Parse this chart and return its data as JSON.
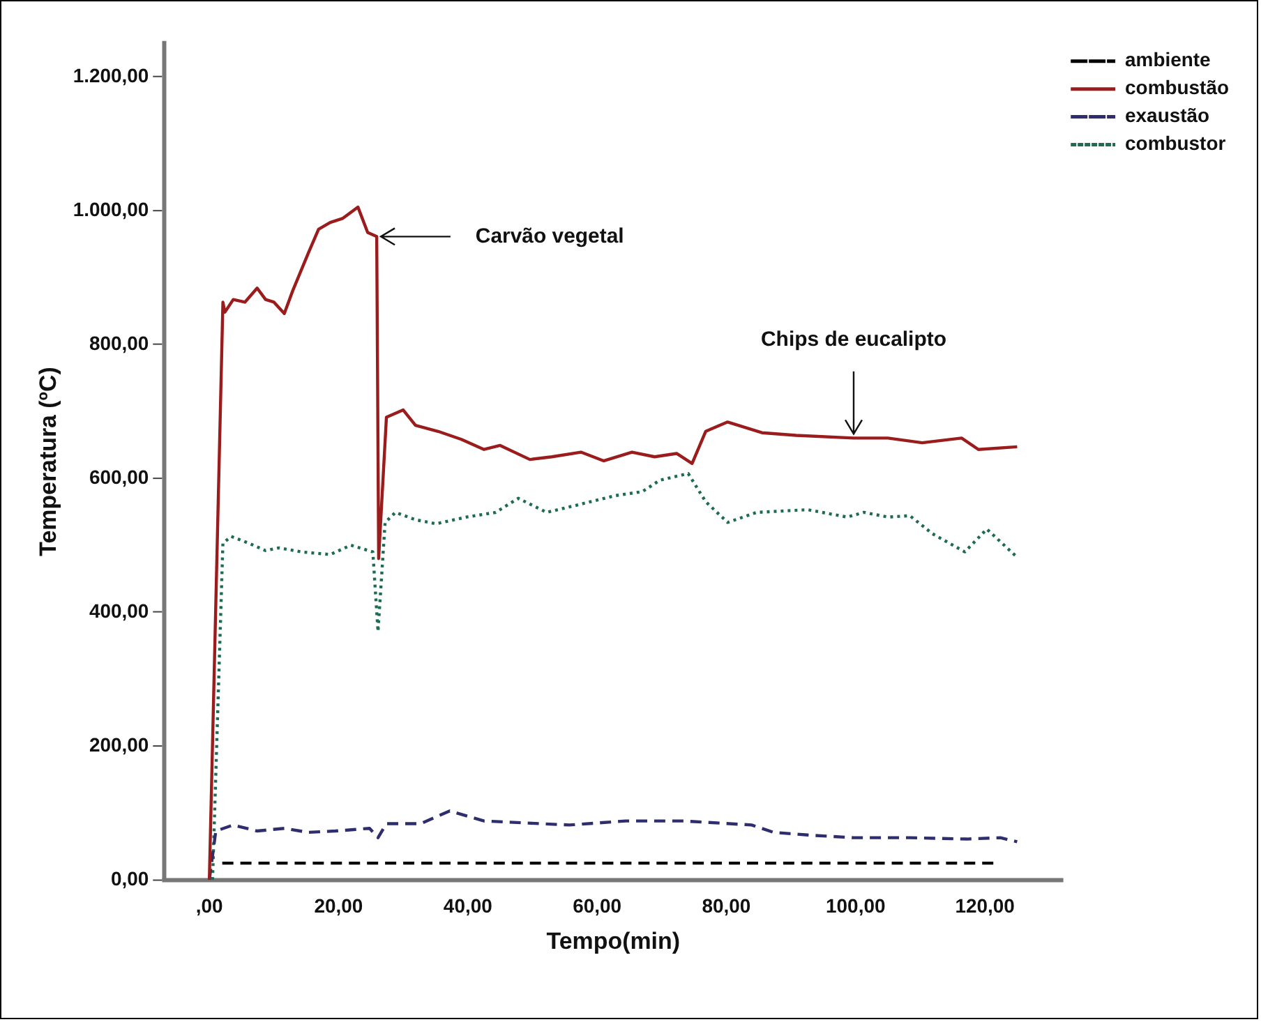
{
  "chart_data": {
    "type": "line",
    "xlabel": "Tempo(min)",
    "ylabel": "Temperatura (ºC)",
    "xlim": [
      -7,
      132
    ],
    "xticks": [
      {
        "value": 0,
        "label": ",00"
      },
      {
        "value": 20,
        "label": "20,00"
      },
      {
        "value": 40,
        "label": "40,00"
      },
      {
        "value": 60,
        "label": "60,00"
      },
      {
        "value": 80,
        "label": "80,00"
      },
      {
        "value": 100,
        "label": "100,00"
      },
      {
        "value": 120,
        "label": "120,00"
      }
    ],
    "ylim": [
      0,
      1250
    ],
    "yticks": [
      {
        "value": 0,
        "label": "0,00"
      },
      {
        "value": 200,
        "label": "200,00"
      },
      {
        "value": 400,
        "label": "400,00"
      },
      {
        "value": 600,
        "label": "600,00"
      },
      {
        "value": 800,
        "label": "800,00"
      },
      {
        "value": 1000,
        "label": "1.000,00"
      },
      {
        "value": 1200,
        "label": "1.200,00"
      }
    ],
    "grid": false,
    "legend": "top right",
    "marker": "none",
    "annotations": [
      {
        "text": "Carvão vegetal",
        "x": 25.9,
        "y": 961
      },
      {
        "text": "Chips de eucalipto",
        "x": 99.7,
        "y": 660
      }
    ],
    "series": [
      {
        "name": "ambiente",
        "color": "#000000",
        "line_style": "dashed",
        "x": [
          2,
          122
        ],
        "values": [
          25,
          25
        ]
      },
      {
        "name": "combustão",
        "color": "#9b1c1c",
        "line_style": "solid",
        "x": [
          0,
          2.1,
          2.4,
          3.7,
          5.5,
          7.4,
          8.7,
          10,
          11.6,
          12.9,
          15.3,
          16.9,
          18.7,
          20.6,
          23,
          24.5,
          25.9,
          26.2,
          27.4,
          30,
          31.9,
          35.4,
          39,
          42.5,
          45,
          49.6,
          53,
          57.5,
          61,
          65.4,
          68.9,
          72.3,
          74.7,
          76.8,
          80.2,
          85.5,
          90.8,
          99.7,
          105,
          110.3,
          116.4,
          119,
          125
        ],
        "values": [
          0,
          863,
          848,
          867,
          863,
          884,
          867,
          863,
          846,
          880,
          936,
          972,
          982,
          988,
          1005,
          967,
          961,
          480,
          691,
          702,
          679,
          670,
          658,
          643,
          649,
          628,
          632,
          639,
          626,
          639,
          632,
          637,
          622,
          670,
          684,
          668,
          664,
          660,
          660,
          653,
          660,
          643,
          647
        ]
      },
      {
        "name": "exaustão",
        "color": "#2e2e6e",
        "line_style": "dashed",
        "x": [
          0,
          1,
          3.7,
          7.4,
          11.6,
          15.3,
          19.5,
          24.8,
          26.1,
          27.4,
          32.7,
          37.2,
          42.5,
          51.2,
          55.7,
          64.4,
          73.4,
          83.9,
          87.3,
          92.6,
          99.7,
          108.4,
          117.2,
          122.4,
          125
        ],
        "values": [
          0,
          73,
          82,
          73,
          77,
          71,
          73,
          77,
          63,
          84,
          84,
          103,
          88,
          84,
          82,
          88,
          88,
          82,
          71,
          67,
          63,
          63,
          61,
          63,
          57
        ]
      },
      {
        "name": "combustor",
        "color": "#1e6b55",
        "line_style": "dotted",
        "x": [
          0.5,
          2.1,
          3.4,
          6.1,
          8.7,
          10.8,
          14.2,
          18.7,
          21.9,
          25.3,
          26.1,
          27.2,
          28.8,
          31.9,
          35.1,
          39.8,
          44.3,
          47.8,
          52.2,
          56.5,
          62.8,
          67,
          69.7,
          74.1,
          76.8,
          80.2,
          84.7,
          92.6,
          98.7,
          101.3,
          105,
          108.4,
          111.9,
          116.9,
          120.3,
          125
        ],
        "values": [
          0,
          503,
          513,
          503,
          492,
          496,
          490,
          486,
          500,
          490,
          371,
          534,
          549,
          538,
          532,
          542,
          549,
          570,
          549,
          559,
          574,
          580,
          597,
          607,
          565,
          534,
          549,
          553,
          542,
          549,
          542,
          544,
          517,
          490,
          524,
          482
        ]
      }
    ]
  }
}
